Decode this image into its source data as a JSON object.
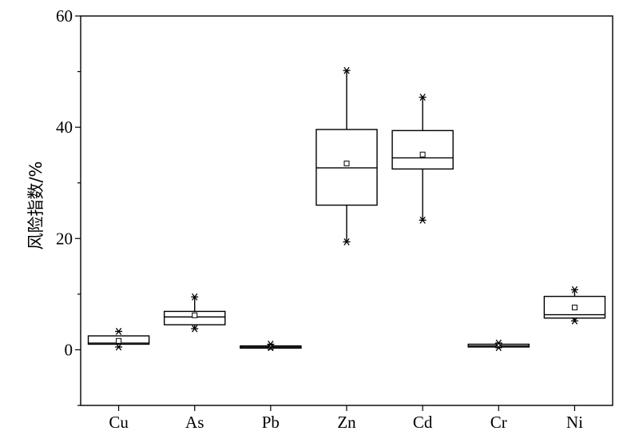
{
  "chart_data": {
    "type": "box",
    "categories": [
      "Cu",
      "As",
      "Pb",
      "Zn",
      "Cd",
      "Cr",
      "Ni"
    ],
    "boxes": [
      {
        "category": "Cu",
        "q1": 1.0,
        "median": 1.2,
        "q3": 2.5,
        "mean": 1.6,
        "whisker_low": 1.0,
        "whisker_high": 2.5,
        "extremes": [
          3.3,
          0.5
        ]
      },
      {
        "category": "As",
        "q1": 4.5,
        "median": 5.9,
        "q3": 6.9,
        "mean": 6.2,
        "whisker_low": 3.8,
        "whisker_high": 9.5,
        "extremes": [
          9.5,
          3.8
        ]
      },
      {
        "category": "Pb",
        "q1": 0.3,
        "median": 0.5,
        "q3": 0.7,
        "mean": 0.5,
        "whisker_low": 0.3,
        "whisker_high": 0.7,
        "extremes": [
          1.0,
          0.4
        ]
      },
      {
        "category": "Zn",
        "q1": 26.0,
        "median": 32.7,
        "q3": 39.6,
        "mean": 33.5,
        "whisker_low": 19.4,
        "whisker_high": 50.2,
        "extremes": [
          50.2,
          19.4
        ]
      },
      {
        "category": "Cd",
        "q1": 32.5,
        "median": 34.5,
        "q3": 39.4,
        "mean": 35.1,
        "whisker_low": 23.3,
        "whisker_high": 45.4,
        "extremes": [
          45.4,
          23.3
        ]
      },
      {
        "category": "Cr",
        "q1": 0.5,
        "median": 0.7,
        "q3": 1.0,
        "mean": 0.8,
        "whisker_low": 0.5,
        "whisker_high": 1.0,
        "extremes": [
          1.2,
          0.4
        ]
      },
      {
        "category": "Ni",
        "q1": 5.7,
        "median": 6.3,
        "q3": 9.6,
        "mean": 7.6,
        "whisker_low": 5.2,
        "whisker_high": 10.8,
        "extremes": [
          10.8,
          5.2
        ]
      }
    ],
    "ylabel": "风险指数/%",
    "xlabel": "",
    "title": "",
    "ylim": [
      -10,
      60
    ],
    "yticks": [
      0,
      20,
      40,
      60
    ],
    "grid": false,
    "legend": "none"
  }
}
